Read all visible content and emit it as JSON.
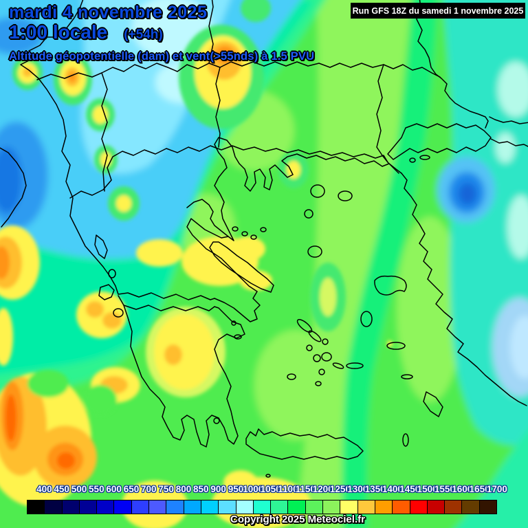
{
  "header": {
    "date_line": "mardi 4 novembre 2025",
    "time_line": "1:00 locale",
    "forecast_offset": "(+54h)",
    "subtitle": "Altitude géopotentielle (dam) et vent(>55nds) à 1.5 PVU",
    "run_info": "Run GFS 18Z du samedi 1 novembre 2025"
  },
  "colors": {
    "title_blue": "#0a49e0",
    "subtitle_blue": "#1e5cff",
    "run_bar_bg": "#000000",
    "run_bar_text": "#ffffff",
    "map_base_green": "#50ec50",
    "coastline": "#000000",
    "scale_label_text": "#ffffff"
  },
  "scale": {
    "values": [
      "400",
      "450",
      "500",
      "550",
      "600",
      "650",
      "700",
      "750",
      "800",
      "850",
      "900",
      "950",
      "1000",
      "1050",
      "1100",
      "1150",
      "1200",
      "1250",
      "1300",
      "1350",
      "1400",
      "1450",
      "1500",
      "1550",
      "1600",
      "1650",
      "1700"
    ],
    "colors": [
      "#000000",
      "#000042",
      "#00006e",
      "#000096",
      "#0000c8",
      "#0000f5",
      "#2e3eff",
      "#4d5aff",
      "#1e82ff",
      "#00a8ff",
      "#00d0ff",
      "#5cdfff",
      "#a3ffff",
      "#1fffd0",
      "#2ef596",
      "#00f055",
      "#5cf25c",
      "#8cf25c",
      "#ffff66",
      "#ffc83c",
      "#ff9e00",
      "#ff5c00",
      "#ff0000",
      "#c80000",
      "#9e3200",
      "#643c00",
      "#321400"
    ]
  },
  "footer": {
    "copyright": "Copyright 2025 Meteociel.fr"
  }
}
